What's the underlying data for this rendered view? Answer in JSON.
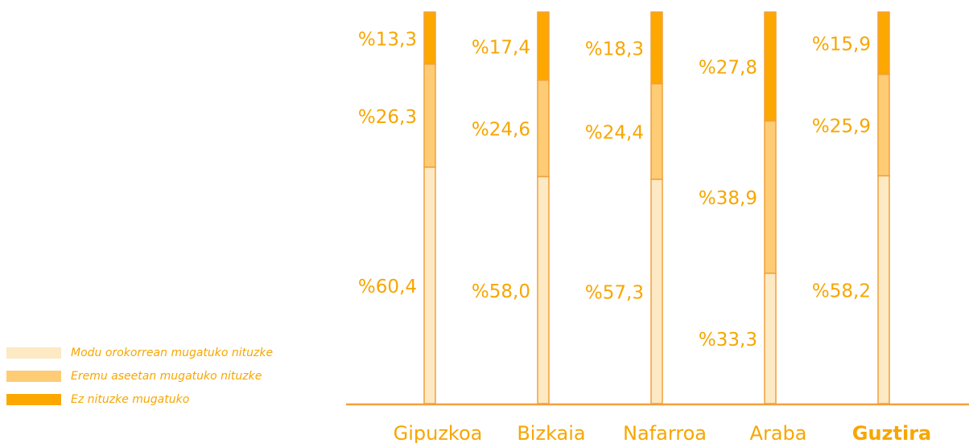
{
  "chart_data": {
    "type": "bar",
    "stacked": true,
    "orientation": "vertical",
    "categories": [
      "Gipuzkoa",
      "Bizkaia",
      "Nafarroa",
      "Araba",
      "Guztira"
    ],
    "highlighted_category": "Guztira",
    "ylim": [
      0,
      100
    ],
    "grid": false,
    "legend_position": "bottom-left",
    "series": [
      {
        "name": "Modu orokorrean mugatuko nituzke",
        "color": "#fde9c4",
        "values": [
          60.4,
          58.0,
          57.3,
          33.3,
          58.2
        ],
        "labels": [
          "%60,4",
          "%58,0",
          "%57,3",
          "%33,3",
          "%58,2"
        ]
      },
      {
        "name": "Eremu aseetan mugatuko nituzke",
        "color": "#fecc74",
        "values": [
          26.3,
          24.6,
          24.4,
          38.9,
          25.9
        ],
        "labels": [
          "%26,3",
          "%24,6",
          "%24,4",
          "%38,9",
          "%25,9"
        ]
      },
      {
        "name": "Ez nituzke mugatuko",
        "color": "#fca800",
        "values": [
          13.3,
          17.4,
          18.3,
          27.8,
          15.9
        ],
        "labels": [
          "%13,3",
          "%17,4",
          "%18,3",
          "%27,8",
          "%15,9"
        ]
      }
    ]
  },
  "colors": {
    "label_text": "#f7a600",
    "axis_line": "#f2a03a",
    "bar_edge": "#f2a03a"
  }
}
